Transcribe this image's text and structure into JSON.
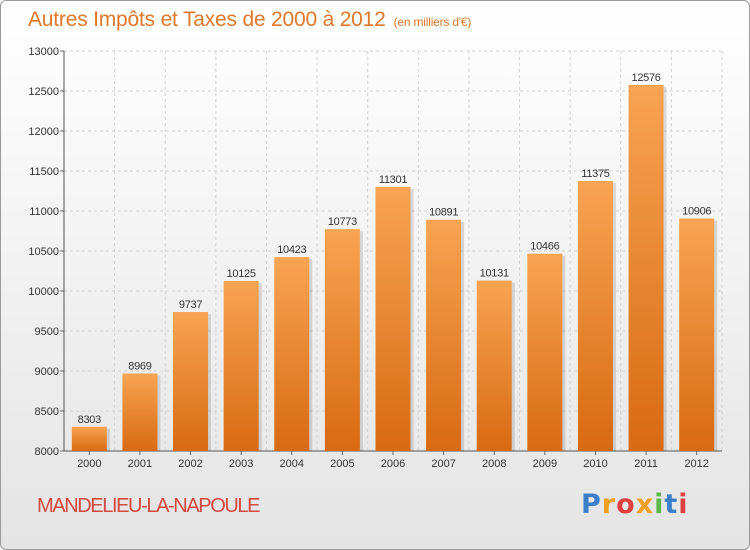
{
  "chart_data": {
    "type": "bar",
    "title": "Autres Impôts et Taxes de 2000 à 2012",
    "subtitle": "(en milliers d'€)",
    "categories": [
      "2000",
      "2001",
      "2002",
      "2003",
      "2004",
      "2005",
      "2006",
      "2007",
      "2008",
      "2009",
      "2010",
      "2011",
      "2012"
    ],
    "values": [
      8303,
      8969,
      9737,
      10125,
      10423,
      10773,
      11301,
      10891,
      10131,
      10466,
      11375,
      12576,
      10906
    ],
    "ylim": [
      8000,
      13000
    ],
    "yticks": [
      8000,
      8500,
      9000,
      9500,
      10000,
      10500,
      11000,
      11500,
      12000,
      12500,
      13000
    ],
    "xlabel": "",
    "ylabel": "",
    "grid": true,
    "bar_color": "#f0862e",
    "title_color": "#e0782a"
  },
  "footer": {
    "city": "MANDELIEU-LA-NAPOULE",
    "city_color": "#d4483e",
    "brand_letters": [
      {
        "char": "P",
        "color": "#3a7fc8"
      },
      {
        "char": "r",
        "color": "#f0a020"
      },
      {
        "char": "o",
        "color": "#e04040"
      },
      {
        "char": "x",
        "color": "#f0a020"
      },
      {
        "char": "i",
        "color": "#5cb848"
      },
      {
        "char": "t",
        "color": "#3a7fc8"
      },
      {
        "char": "i",
        "color": "#e04040"
      }
    ]
  }
}
